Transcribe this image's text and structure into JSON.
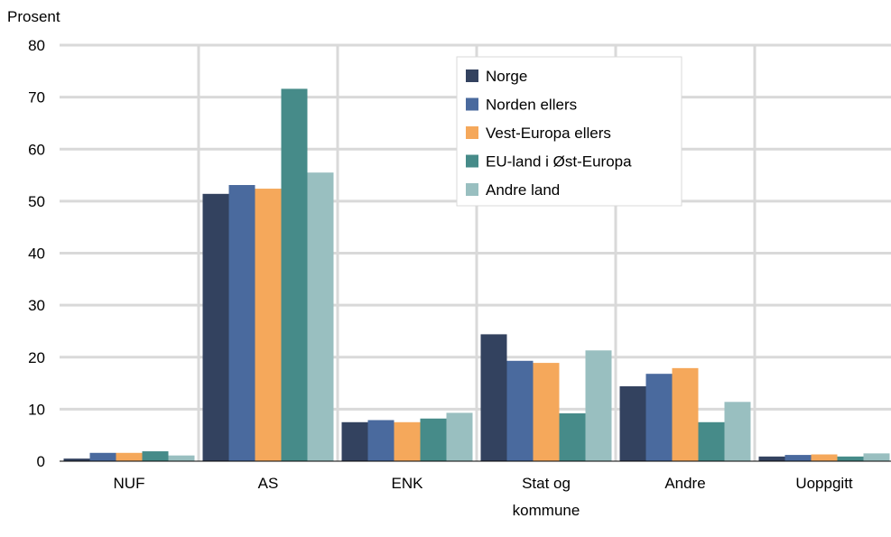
{
  "chart_data": {
    "type": "bar",
    "ylabel": "Prosent",
    "xlabel": "",
    "ylim": [
      0,
      80
    ],
    "yticks": [
      0,
      10,
      20,
      30,
      40,
      50,
      60,
      70,
      80
    ],
    "grid": true,
    "legend_position": "top-center",
    "categories": [
      [
        "NUF"
      ],
      [
        "AS"
      ],
      [
        "ENK"
      ],
      [
        "Stat og",
        "kommune"
      ],
      [
        "Andre"
      ],
      [
        "Uoppgitt"
      ]
    ],
    "series": [
      {
        "name": "Norge",
        "color": "#33425f",
        "values": [
          0.5,
          51.4,
          7.5,
          24.4,
          14.4,
          0.9
        ]
      },
      {
        "name": "Norden ellers",
        "color": "#4a6a9e",
        "values": [
          1.6,
          53.1,
          7.9,
          19.3,
          16.8,
          1.2
        ]
      },
      {
        "name": "Vest-Europa ellers",
        "color": "#f5a85b",
        "values": [
          1.6,
          52.4,
          7.5,
          18.9,
          17.9,
          1.3
        ]
      },
      {
        "name": "EU-land i Øst-Europa",
        "color": "#468b89",
        "values": [
          1.9,
          71.6,
          8.2,
          9.2,
          7.5,
          0.9
        ]
      },
      {
        "name": "Andre land",
        "color": "#99bfc0",
        "values": [
          1.1,
          55.5,
          9.3,
          21.3,
          11.4,
          1.5
        ]
      }
    ]
  }
}
